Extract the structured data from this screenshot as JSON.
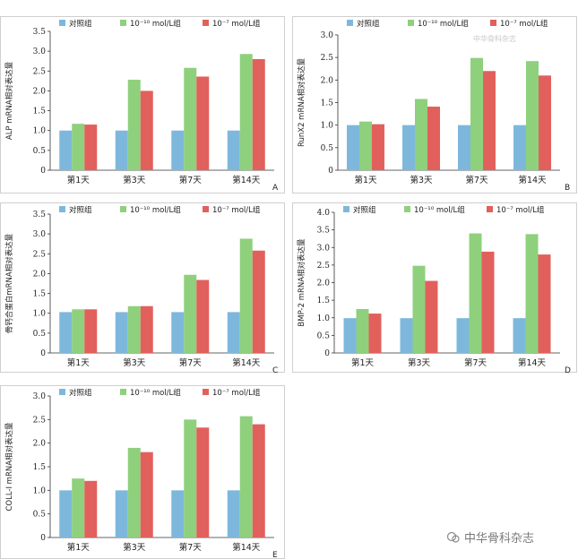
{
  "legend": {
    "labels": [
      "对照组",
      "10⁻¹⁰ mol/L组",
      "10⁻⁷ mol/L组"
    ],
    "colors": [
      "#7db8dc",
      "#8fd07c",
      "#e2605c"
    ]
  },
  "watermark": {
    "text": "中华骨科杂志",
    "faint_text": "中华骨科杂志"
  },
  "chart_data": [
    {
      "type": "bar",
      "panel": "A",
      "ylabel": "ALP mRNA相对表达量",
      "categories": [
        "第1天",
        "第3天",
        "第7天",
        "第14天"
      ],
      "yticks": [
        "0",
        "0.5",
        "1.0",
        "1.5",
        "2.0",
        "2.5",
        "3.0",
        "3.5"
      ],
      "ylim": [
        0,
        3.5
      ],
      "series": [
        {
          "name": "对照组",
          "values": [
            1.0,
            1.0,
            1.0,
            1.0
          ]
        },
        {
          "name": "10⁻¹⁰ mol/L组",
          "values": [
            1.17,
            2.28,
            2.58,
            2.93
          ]
        },
        {
          "name": "10⁻⁷ mol/L组",
          "values": [
            1.15,
            2.0,
            2.36,
            2.8
          ]
        }
      ]
    },
    {
      "type": "bar",
      "panel": "B",
      "ylabel": "RunX2 mRNA相对表达量",
      "categories": [
        "第1天",
        "第3天",
        "第7天",
        "第14天"
      ],
      "yticks": [
        "0",
        "0.5",
        "1.0",
        "1.5",
        "2.0",
        "2.5",
        "3.0"
      ],
      "ylim": [
        0,
        3.0
      ],
      "series": [
        {
          "name": "对照组",
          "values": [
            1.0,
            1.0,
            1.0,
            1.0
          ]
        },
        {
          "name": "10⁻¹⁰ mol/L组",
          "values": [
            1.08,
            1.58,
            2.49,
            2.42
          ]
        },
        {
          "name": "10⁻⁷ mol/L组",
          "values": [
            1.02,
            1.41,
            2.2,
            2.1
          ]
        }
      ]
    },
    {
      "type": "bar",
      "panel": "C",
      "ylabel": "骨钙合蛋白mRNA相对表达量",
      "categories": [
        "第1天",
        "第3天",
        "第7天",
        "第14天"
      ],
      "yticks": [
        "0",
        "0.5",
        "1.0",
        "1.5",
        "2.0",
        "2.5",
        "3.0",
        "3.5"
      ],
      "ylim": [
        0,
        3.5
      ],
      "series": [
        {
          "name": "对照组",
          "values": [
            1.03,
            1.03,
            1.03,
            1.03
          ]
        },
        {
          "name": "10⁻¹⁰ mol/L组",
          "values": [
            1.1,
            1.18,
            1.97,
            2.88
          ]
        },
        {
          "name": "10⁻⁷ mol/L组",
          "values": [
            1.1,
            1.18,
            1.84,
            2.58
          ]
        }
      ]
    },
    {
      "type": "bar",
      "panel": "D",
      "ylabel": "BMP-2 mRNA相对表达量",
      "categories": [
        "第1天",
        "第3天",
        "第7天",
        "第14天"
      ],
      "yticks": [
        "0",
        "0.5",
        "1.0",
        "1.5",
        "2.0",
        "2.5",
        "3.0",
        "3.5",
        "4.0"
      ],
      "ylim": [
        0,
        4.0
      ],
      "series": [
        {
          "name": "对照组",
          "values": [
            0.99,
            0.99,
            0.99,
            0.99
          ]
        },
        {
          "name": "10⁻¹⁰ mol/L组",
          "values": [
            1.25,
            2.48,
            3.4,
            3.38
          ]
        },
        {
          "name": "10⁻⁷ mol/L组",
          "values": [
            1.12,
            2.05,
            2.88,
            2.8
          ]
        }
      ]
    },
    {
      "type": "bar",
      "panel": "E",
      "ylabel": "COLL-Ⅰ mRNA相对表达量",
      "categories": [
        "第1天",
        "第3天",
        "第7天",
        "第14天"
      ],
      "yticks": [
        "0",
        "0.5",
        "1.0",
        "1.5",
        "2.0",
        "2.5",
        "3.0"
      ],
      "ylim": [
        0,
        3.0
      ],
      "series": [
        {
          "name": "对照组",
          "values": [
            1.0,
            1.0,
            1.0,
            1.0
          ]
        },
        {
          "name": "10⁻¹⁰ mol/L组",
          "values": [
            1.25,
            1.9,
            2.5,
            2.57
          ]
        },
        {
          "name": "10⁻⁷ mol/L组",
          "values": [
            1.2,
            1.81,
            2.33,
            2.4
          ]
        }
      ]
    }
  ]
}
